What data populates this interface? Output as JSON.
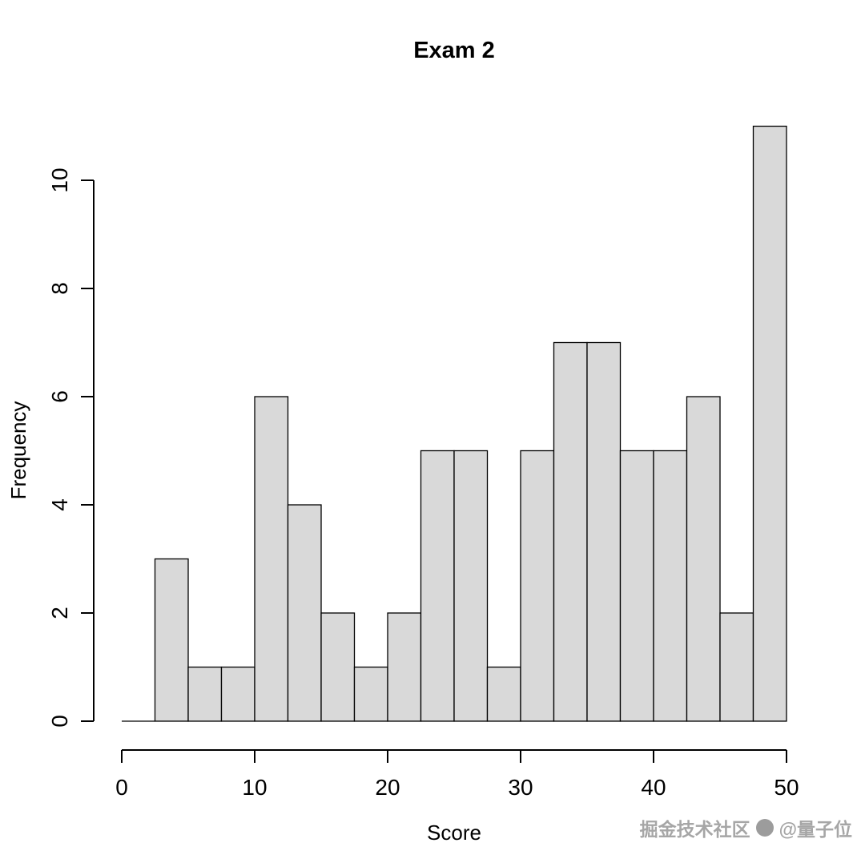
{
  "chart_data": {
    "type": "bar",
    "subtype": "histogram",
    "title": "Exam 2",
    "xlabel": "Score",
    "ylabel": "Frequency",
    "bin_edges": [
      0,
      2.5,
      5,
      7.5,
      10,
      12.5,
      15,
      17.5,
      20,
      22.5,
      25,
      27.5,
      30,
      32.5,
      35,
      37.5,
      40,
      42.5,
      45,
      47.5,
      50
    ],
    "counts": [
      0,
      3,
      1,
      1,
      6,
      4,
      2,
      1,
      2,
      5,
      5,
      1,
      5,
      7,
      7,
      5,
      5,
      6,
      2,
      11
    ],
    "xlim": [
      0,
      50
    ],
    "ylim": [
      0,
      10
    ],
    "x_ticks": [
      0,
      10,
      20,
      30,
      40,
      50
    ],
    "y_ticks": [
      0,
      2,
      4,
      6,
      8,
      10
    ],
    "bar_fill": "#d9d9d9",
    "bar_stroke": "#000000",
    "axis_color": "#000000",
    "grid": false,
    "legend": false
  },
  "watermark": {
    "community": "掘金技术社区",
    "handle": "@量子位",
    "color": "#9a9a9a"
  }
}
